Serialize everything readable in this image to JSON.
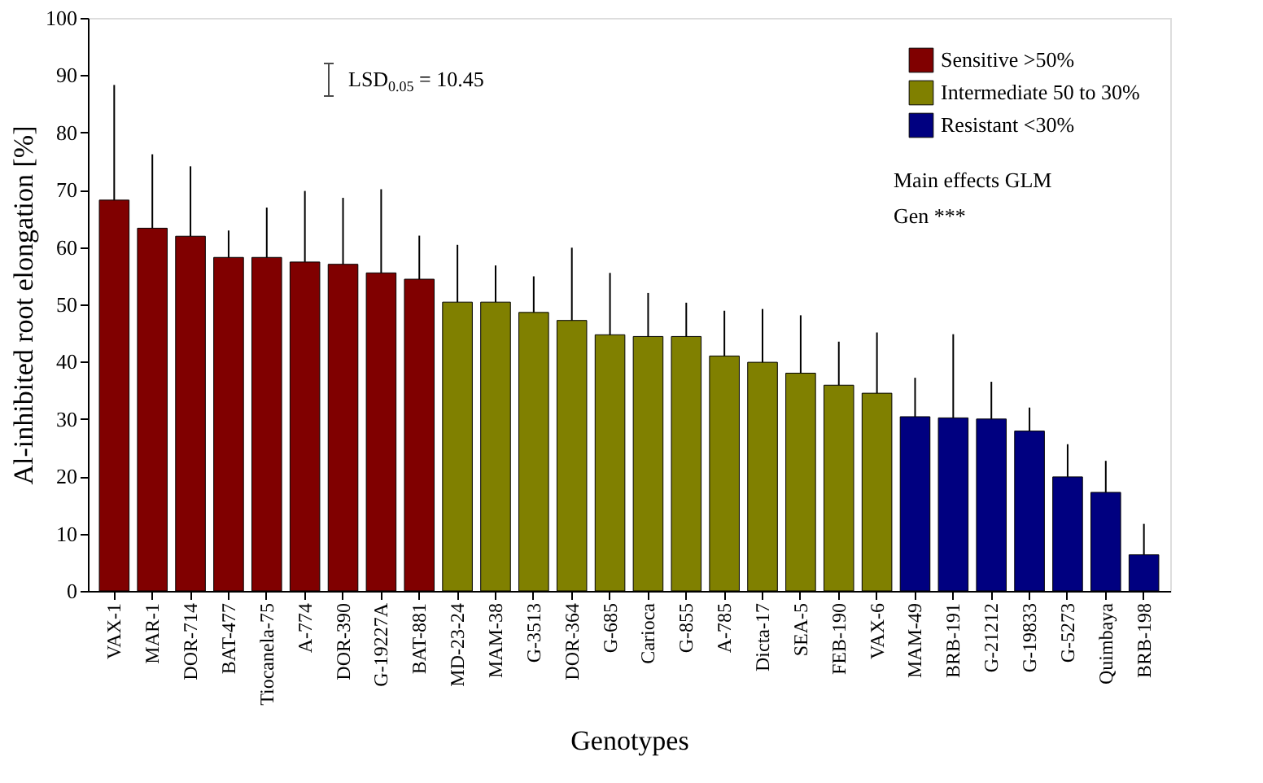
{
  "chart_data": {
    "type": "bar",
    "xlabel": "Genotypes",
    "ylabel": "Al-inhibited root elongation [%]",
    "categories": [
      "VAX-1",
      "MAR-1",
      "DOR-714",
      "BAT-477",
      "Tiocanela-75",
      "A-774",
      "DOR-390",
      "G-19227A",
      "BAT-881",
      "MD-23-24",
      "MAM-38",
      "G-3513",
      "DOR-364",
      "G-685",
      "Carioca",
      "G-855",
      "A-785",
      "Dicta-17",
      "SEA-5",
      "FEB-190",
      "VAX-6",
      "MAM-49",
      "BRB-191",
      "G-21212",
      "G-19833",
      "G-5273",
      "Quimbaya",
      "BRB-198"
    ],
    "series": [
      {
        "name": "Sensitive >50%",
        "color": "#800000",
        "values": [
          68.2,
          63.3,
          61.9,
          58.2,
          58.2,
          57.4,
          57.0,
          55.5,
          54.4,
          null,
          null,
          null,
          null,
          null,
          null,
          null,
          null,
          null,
          null,
          null,
          null,
          null,
          null,
          null,
          null,
          null,
          null,
          null
        ],
        "errors": [
          [
            68.2,
            88.3
          ],
          [
            63.3,
            76.2
          ],
          [
            61.9,
            74.1
          ],
          [
            58.2,
            62.9
          ],
          [
            58.2,
            66.9
          ],
          [
            57.4,
            69.8
          ],
          [
            57.0,
            68.6
          ],
          [
            55.5,
            70.1
          ],
          [
            54.4,
            62.0
          ],
          null,
          null,
          null,
          null,
          null,
          null,
          null,
          null,
          null,
          null,
          null,
          null,
          null,
          null,
          null,
          null,
          null,
          null,
          null
        ]
      },
      {
        "name": "Intermediate 50 to 30%",
        "color": "#808000",
        "values": [
          null,
          null,
          null,
          null,
          null,
          null,
          null,
          null,
          null,
          50.4,
          50.4,
          48.6,
          47.2,
          44.7,
          44.4,
          44.4,
          41.0,
          39.9,
          38.0,
          35.9,
          34.5,
          null,
          null,
          null,
          null,
          null,
          null,
          null
        ],
        "errors": [
          null,
          null,
          null,
          null,
          null,
          null,
          null,
          null,
          null,
          [
            50.4,
            60.4
          ],
          [
            50.4,
            56.8
          ],
          [
            48.6,
            54.9
          ],
          [
            47.2,
            59.9
          ],
          [
            44.7,
            55.5
          ],
          [
            44.4,
            52.0
          ],
          [
            44.4,
            50.3
          ],
          [
            41.0,
            48.9
          ],
          [
            39.9,
            49.2
          ],
          [
            38.0,
            48.1
          ],
          [
            35.9,
            43.5
          ],
          [
            34.5,
            45.1
          ],
          null,
          null,
          null,
          null,
          null,
          null,
          null
        ]
      },
      {
        "name": "Resistant <30%",
        "color": "#000080",
        "values": [
          null,
          null,
          null,
          null,
          null,
          null,
          null,
          null,
          null,
          null,
          null,
          null,
          null,
          null,
          null,
          null,
          null,
          null,
          null,
          null,
          null,
          30.4,
          30.2,
          30.0,
          27.9,
          19.9,
          17.2,
          6.3
        ],
        "errors": [
          null,
          null,
          null,
          null,
          null,
          null,
          null,
          null,
          null,
          null,
          null,
          null,
          null,
          null,
          null,
          null,
          null,
          null,
          null,
          null,
          null,
          [
            30.4,
            37.2
          ],
          [
            30.2,
            44.8
          ],
          [
            30.0,
            36.5
          ],
          [
            27.9,
            32.0
          ],
          [
            19.9,
            25.6
          ],
          [
            17.2,
            22.7
          ],
          [
            6.3,
            11.7
          ]
        ]
      }
    ],
    "ylim": [
      0,
      100
    ],
    "yticks": [
      0,
      10,
      20,
      30,
      40,
      50,
      60,
      70,
      80,
      90,
      100
    ],
    "grid": false,
    "legend": "top right",
    "annotations": [
      "LSD$_{0.05}$ = 10.45",
      "Main effects GLM",
      "Gen     ***"
    ]
  }
}
